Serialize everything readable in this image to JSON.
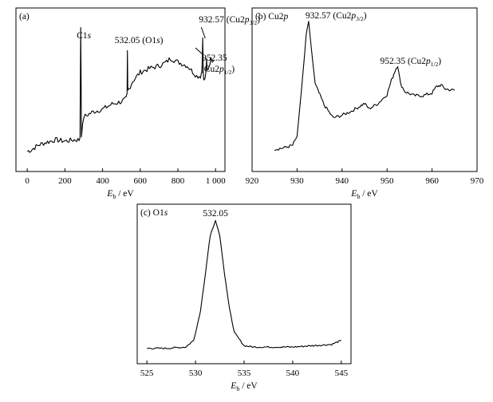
{
  "chart_data": [
    {
      "type": "line",
      "panel": "(a)",
      "xlabel_main": "E",
      "xlabel_sub": "b",
      "xlabel_unit": " / eV",
      "xlim": [
        -60,
        1050
      ],
      "xticks": [
        0,
        200,
        400,
        600,
        800,
        1000
      ],
      "xtick_labels": [
        "0",
        "200",
        "400",
        "600",
        "800",
        "1 000"
      ],
      "yaxis_ticks": false,
      "annotations": [
        {
          "text": "C1",
          "italic": "s",
          "x": 284
        },
        {
          "text": "532.05 (O1",
          "italic": "s",
          "suffix": ")",
          "x": 532.05
        },
        {
          "text": "932.57 (Cu2",
          "italic": "p",
          "sub": "3/2",
          "suffix": ")",
          "x": 932.57
        },
        {
          "line1": "952.35",
          "text": "(Cu2",
          "italic": "p",
          "sub": "1/2",
          "suffix": ")",
          "x": 952.35
        }
      ],
      "x": [
        0,
        20,
        60,
        100,
        150,
        200,
        250,
        275,
        280,
        284,
        288,
        300,
        350,
        400,
        450,
        500,
        525,
        530,
        532,
        534,
        540,
        560,
        600,
        650,
        700,
        740,
        760,
        800,
        850,
        900,
        920,
        928,
        932,
        935,
        940,
        948,
        952,
        956,
        965,
        975,
        990
      ],
      "y": [
        0.03,
        0.04,
        0.08,
        0.1,
        0.12,
        0.11,
        0.12,
        0.12,
        0.14,
        1.0,
        0.16,
        0.3,
        0.34,
        0.36,
        0.4,
        0.42,
        0.44,
        0.48,
        0.82,
        0.5,
        0.52,
        0.58,
        0.65,
        0.68,
        0.7,
        0.73,
        0.76,
        0.73,
        0.7,
        0.62,
        0.62,
        0.66,
        0.92,
        0.64,
        0.58,
        0.63,
        0.74,
        0.66,
        0.7,
        0.75,
        0.74
      ]
    },
    {
      "type": "line",
      "panel": "(b)",
      "panel_title": "Cu2",
      "panel_title_italic": "p",
      "xlabel_main": "E",
      "xlabel_sub": "b",
      "xlabel_unit": " / eV",
      "xlim": [
        920,
        970
      ],
      "xticks": [
        920,
        930,
        940,
        950,
        960,
        970
      ],
      "xtick_labels": [
        "920",
        "930",
        "940",
        "950",
        "960",
        "970"
      ],
      "yaxis_ticks": false,
      "annotations": [
        {
          "text": "932.57 (Cu2",
          "italic": "p",
          "sub": "3/2",
          "suffix": ")",
          "x": 932.57
        },
        {
          "text": "952.35 (Cu2",
          "italic": "p",
          "sub": "1/2",
          "suffix": ")",
          "x": 952.35
        }
      ],
      "x": [
        925,
        927,
        929,
        930,
        931,
        932,
        932.57,
        933,
        934,
        936,
        938,
        940,
        942,
        944,
        945,
        946,
        948,
        950,
        951,
        952,
        952.35,
        953,
        954,
        956,
        958,
        960,
        961,
        962,
        963,
        965
      ],
      "y": [
        0.02,
        0.03,
        0.05,
        0.12,
        0.48,
        0.88,
        1.0,
        0.85,
        0.52,
        0.36,
        0.26,
        0.28,
        0.31,
        0.35,
        0.37,
        0.33,
        0.37,
        0.44,
        0.55,
        0.64,
        0.66,
        0.52,
        0.46,
        0.43,
        0.43,
        0.45,
        0.5,
        0.51,
        0.48,
        0.47
      ]
    },
    {
      "type": "line",
      "panel": "(c)",
      "panel_title": "O1",
      "panel_title_italic": "s",
      "xlabel_main": "E",
      "xlabel_sub": "b",
      "xlabel_unit": " / eV",
      "xlim": [
        524,
        546
      ],
      "xticks": [
        525,
        530,
        535,
        540,
        545
      ],
      "xtick_labels": [
        "525",
        "530",
        "535",
        "540",
        "545"
      ],
      "yaxis_ticks": false,
      "annotations": [
        {
          "text": "532.05",
          "x": 532.05
        }
      ],
      "x": [
        525,
        527,
        529,
        529.8,
        530.5,
        531,
        531.5,
        532.05,
        532.5,
        533,
        533.5,
        534,
        535,
        536,
        538,
        540,
        542,
        544,
        545
      ],
      "y": [
        0.02,
        0.02,
        0.03,
        0.08,
        0.3,
        0.58,
        0.88,
        1.0,
        0.88,
        0.58,
        0.32,
        0.14,
        0.04,
        0.03,
        0.03,
        0.03,
        0.04,
        0.05,
        0.08
      ]
    }
  ]
}
